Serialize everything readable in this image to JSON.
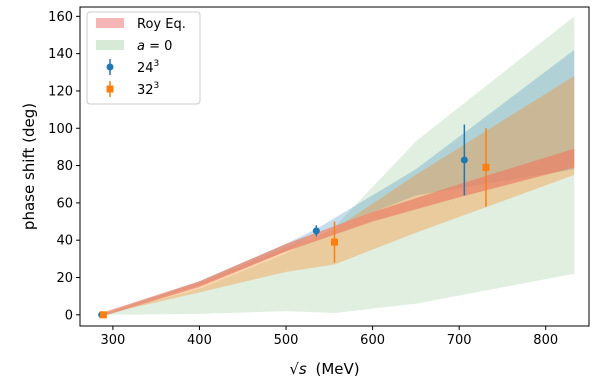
{
  "chart_data": {
    "type": "scatter",
    "xlabel_prefix": "√s",
    "xlabel_unit": "(MeV)",
    "ylabel": "phase shift (deg)",
    "xlim": [
      262,
      850
    ],
    "ylim": [
      -6,
      165
    ],
    "x_ticks": [
      300,
      400,
      500,
      600,
      700,
      800
    ],
    "y_ticks": [
      0,
      20,
      40,
      60,
      80,
      100,
      120,
      140,
      160
    ],
    "grid": false,
    "legend_position": "top-left",
    "legend": [
      {
        "kind": "band",
        "label": "Roy Eq.",
        "color": "#f7b6b6"
      },
      {
        "kind": "band",
        "label": "a = 0",
        "color": "#d6ead6"
      },
      {
        "kind": "marker",
        "label": "24",
        "sup": "3",
        "color": "#1f77b4",
        "marker": "circle"
      },
      {
        "kind": "marker",
        "label": "32",
        "sup": "3",
        "color": "#ff7f0e",
        "marker": "square"
      }
    ],
    "bands": [
      {
        "name": "a = 0",
        "color": "#d6ead6",
        "opacity": 0.75,
        "upper": [
          [
            287,
            0
          ],
          [
            400,
            14
          ],
          [
            500,
            33
          ],
          [
            556,
            47
          ],
          [
            650,
            93
          ],
          [
            833,
            160
          ]
        ],
        "lower": [
          [
            287,
            0
          ],
          [
            400,
            0.5
          ],
          [
            500,
            2
          ],
          [
            556,
            1
          ],
          [
            650,
            6
          ],
          [
            833,
            22
          ]
        ]
      },
      {
        "name": "24^3 band",
        "color": "#1f77b4",
        "opacity": 0.25,
        "upper": [
          [
            287,
            0
          ],
          [
            400,
            18
          ],
          [
            500,
            38
          ],
          [
            535,
            46
          ],
          [
            650,
            78
          ],
          [
            833,
            142
          ]
        ],
        "lower": [
          [
            287,
            0
          ],
          [
            400,
            16
          ],
          [
            500,
            34
          ],
          [
            535,
            43
          ],
          [
            650,
            64
          ],
          [
            833,
            78
          ]
        ]
      },
      {
        "name": "32^3 band",
        "color": "#ff7f0e",
        "opacity": 0.32,
        "upper": [
          [
            287,
            0
          ],
          [
            400,
            17
          ],
          [
            500,
            36
          ],
          [
            556,
            46
          ],
          [
            650,
            75
          ],
          [
            833,
            128
          ]
        ],
        "lower": [
          [
            287,
            0
          ],
          [
            400,
            12
          ],
          [
            500,
            23
          ],
          [
            556,
            27
          ],
          [
            650,
            44
          ],
          [
            833,
            75
          ]
        ]
      },
      {
        "name": "Roy Eq.",
        "color": "#e8836a",
        "opacity": 0.75,
        "upper": [
          [
            287,
            1
          ],
          [
            400,
            18
          ],
          [
            500,
            38
          ],
          [
            600,
            55
          ],
          [
            700,
            70
          ],
          [
            833,
            89
          ]
        ],
        "lower": [
          [
            287,
            -1
          ],
          [
            400,
            15
          ],
          [
            500,
            34
          ],
          [
            600,
            50
          ],
          [
            700,
            63
          ],
          [
            833,
            79
          ]
        ]
      }
    ],
    "series": [
      {
        "name": "24^3",
        "color": "#1f77b4",
        "marker": "circle",
        "points": [
          {
            "x": 287,
            "y": 0,
            "yerr": 1
          },
          {
            "x": 535,
            "y": 45,
            "yerr": 3
          },
          {
            "x": 706,
            "y": 83,
            "yerr": 19
          }
        ]
      },
      {
        "name": "32^3",
        "color": "#ff7f0e",
        "marker": "square",
        "points": [
          {
            "x": 289,
            "y": 0,
            "yerr": 1
          },
          {
            "x": 556,
            "y": 39,
            "yerr": 11
          },
          {
            "x": 731,
            "y": 79,
            "yerr": 21
          }
        ]
      }
    ]
  }
}
